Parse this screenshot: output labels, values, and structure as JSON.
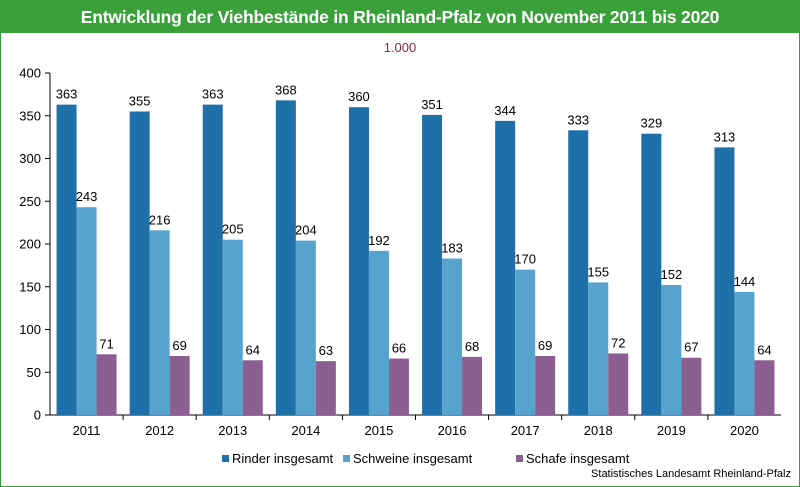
{
  "title": "Entwicklung der Viehbestände in Rheinland-Pfalz von November 2011 bis 2020",
  "unit_label": "1.000",
  "source": "Statistisches Landesamt Rheinland-Pfalz",
  "colors": {
    "title_bg": "#3aa13a",
    "rinder": "#1f6fa8",
    "schweine": "#56a3cd",
    "schafe": "#8c5e92",
    "unit": "#8b2a3a"
  },
  "chart_data": {
    "type": "bar",
    "title": "Entwicklung der Viehbestände in Rheinland-Pfalz von November 2011 bis 2020",
    "categories": [
      "2011",
      "2012",
      "2013",
      "2014",
      "2015",
      "2016",
      "2017",
      "2018",
      "2019",
      "2020"
    ],
    "series": [
      {
        "name": "Rinder insgesamt",
        "color": "#1f6fa8",
        "values": [
          363,
          355,
          363,
          368,
          360,
          351,
          344,
          333,
          329,
          313
        ]
      },
      {
        "name": "Schweine insgesamt",
        "color": "#56a3cd",
        "values": [
          243,
          216,
          205,
          204,
          192,
          183,
          170,
          155,
          152,
          144
        ]
      },
      {
        "name": "Schafe insgesamt",
        "color": "#8c5e92",
        "values": [
          71,
          69,
          64,
          63,
          66,
          68,
          69,
          72,
          67,
          64
        ]
      }
    ],
    "ylim": [
      0,
      400
    ],
    "yticks": [
      "0",
      "50",
      "100",
      "150",
      "200",
      "250",
      "300",
      "350",
      "400"
    ],
    "legend_position": "bottom",
    "grid": false
  }
}
